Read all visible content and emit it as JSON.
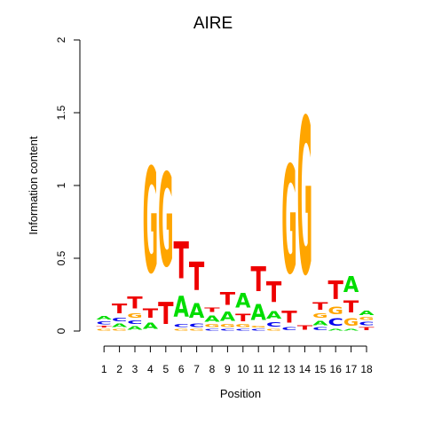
{
  "chart_data": {
    "type": "sequence-logo",
    "title": "AIRE",
    "xlabel": "Position",
    "ylabel": "Information content",
    "ylim": [
      0,
      2
    ],
    "y_ticks": [
      "0",
      "0.5",
      "1",
      "1.5",
      "2"
    ],
    "x_ticks": [
      "1",
      "2",
      "3",
      "4",
      "5",
      "6",
      "7",
      "8",
      "9",
      "10",
      "11",
      "12",
      "13",
      "14",
      "15",
      "16",
      "17",
      "18"
    ],
    "grid": false,
    "letter_colors": {
      "A": "#00dd00",
      "C": "#0000ee",
      "G": "#ffa500",
      "T": "#ee0000"
    },
    "positions": [
      {
        "position": 1,
        "letters": [
          [
            "G",
            0.02
          ],
          [
            "T",
            0.02
          ],
          [
            "C",
            0.03
          ],
          [
            "A",
            0.04
          ]
        ]
      },
      {
        "position": 2,
        "letters": [
          [
            "G",
            0.02
          ],
          [
            "A",
            0.04
          ],
          [
            "C",
            0.04
          ],
          [
            "T",
            0.11
          ]
        ]
      },
      {
        "position": 3,
        "letters": [
          [
            "A",
            0.04
          ],
          [
            "C",
            0.04
          ],
          [
            "G",
            0.05
          ],
          [
            "T",
            0.13
          ]
        ]
      },
      {
        "position": 4,
        "letters": [
          [
            "A",
            0.07
          ],
          [
            "T",
            0.1
          ],
          [
            "G",
            1.16
          ]
        ]
      },
      {
        "position": 5,
        "letters": [
          [
            "T",
            0.24
          ],
          [
            "G",
            1.03
          ]
        ]
      },
      {
        "position": 6,
        "letters": [
          [
            "G",
            0.02
          ],
          [
            "C",
            0.03
          ],
          [
            "A",
            0.23
          ],
          [
            "T",
            0.41
          ]
        ]
      },
      {
        "position": 7,
        "letters": [
          [
            "G",
            0.02
          ],
          [
            "C",
            0.04
          ],
          [
            "A",
            0.16
          ],
          [
            "T",
            0.31
          ]
        ]
      },
      {
        "position": 8,
        "letters": [
          [
            "C",
            0.02
          ],
          [
            "G",
            0.03
          ],
          [
            "A",
            0.07
          ],
          [
            "T",
            0.05
          ]
        ]
      },
      {
        "position": 9,
        "letters": [
          [
            "C",
            0.02
          ],
          [
            "G",
            0.03
          ],
          [
            "A",
            0.1
          ],
          [
            "T",
            0.14
          ]
        ]
      },
      {
        "position": 10,
        "letters": [
          [
            "C",
            0.02
          ],
          [
            "G",
            0.03
          ],
          [
            "T",
            0.08
          ],
          [
            "A",
            0.16
          ]
        ]
      },
      {
        "position": 11,
        "letters": [
          [
            "C",
            0.02
          ],
          [
            "G",
            0.02
          ],
          [
            "A",
            0.18
          ],
          [
            "T",
            0.27
          ]
        ]
      },
      {
        "position": 12,
        "letters": [
          [
            "G",
            0.02
          ],
          [
            "C",
            0.05
          ],
          [
            "A",
            0.08
          ],
          [
            "T",
            0.23
          ]
        ]
      },
      {
        "position": 13,
        "letters": [
          [
            "C",
            0.03
          ],
          [
            "T",
            0.13
          ],
          [
            "G",
            1.19
          ]
        ]
      },
      {
        "position": 14,
        "letters": [
          [
            "T",
            0.05
          ],
          [
            "G",
            1.72
          ]
        ]
      },
      {
        "position": 15,
        "letters": [
          [
            "C",
            0.03
          ],
          [
            "A",
            0.05
          ],
          [
            "G",
            0.05
          ],
          [
            "T",
            0.08
          ]
        ]
      },
      {
        "position": 16,
        "letters": [
          [
            "A",
            0.02
          ],
          [
            "C",
            0.08
          ],
          [
            "G",
            0.08
          ],
          [
            "T",
            0.2
          ]
        ]
      },
      {
        "position": 17,
        "letters": [
          [
            "A",
            0.02
          ],
          [
            "G",
            0.08
          ],
          [
            "T",
            0.13
          ],
          [
            "A",
            0.18
          ]
        ]
      },
      {
        "position": 18,
        "letters": [
          [
            "T",
            0.03
          ],
          [
            "C",
            0.04
          ],
          [
            "G",
            0.03
          ],
          [
            "A",
            0.05
          ]
        ]
      }
    ]
  }
}
